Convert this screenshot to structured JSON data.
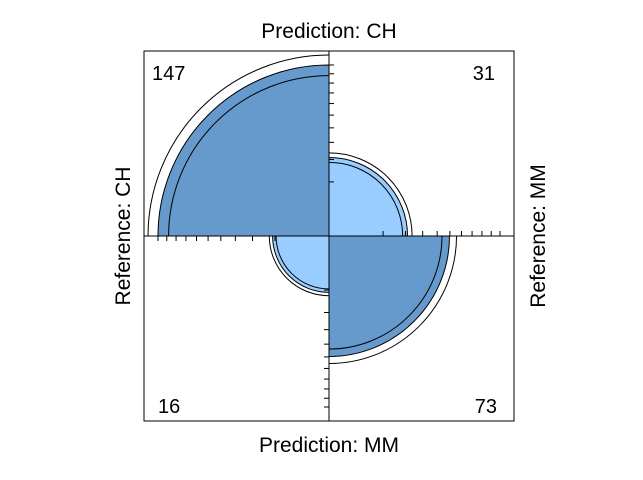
{
  "chart_data": {
    "type": "fourfold",
    "title": "",
    "row_variable": "Reference",
    "col_variable": "Prediction",
    "rows": [
      "CH",
      "MM"
    ],
    "cols": [
      "CH",
      "MM"
    ],
    "labels": {
      "top": "Prediction: CH",
      "bottom": "Prediction: MM",
      "left": "Reference: CH",
      "right": "Reference: MM"
    },
    "cells": [
      {
        "id": "ch-ch",
        "row": "CH",
        "col": "CH",
        "count": 147,
        "shade": "dark"
      },
      {
        "id": "ch-mm",
        "row": "CH",
        "col": "MM",
        "count": 31,
        "shade": "light"
      },
      {
        "id": "mm-ch",
        "row": "MM",
        "col": "CH",
        "count": 16,
        "shade": "light"
      },
      {
        "id": "mm-mm",
        "row": "MM",
        "col": "MM",
        "count": 73,
        "shade": "dark"
      }
    ],
    "colors": {
      "dark": "#6699cc",
      "light": "#99ccff",
      "frame": "#000000"
    },
    "confidence_rings": true
  }
}
